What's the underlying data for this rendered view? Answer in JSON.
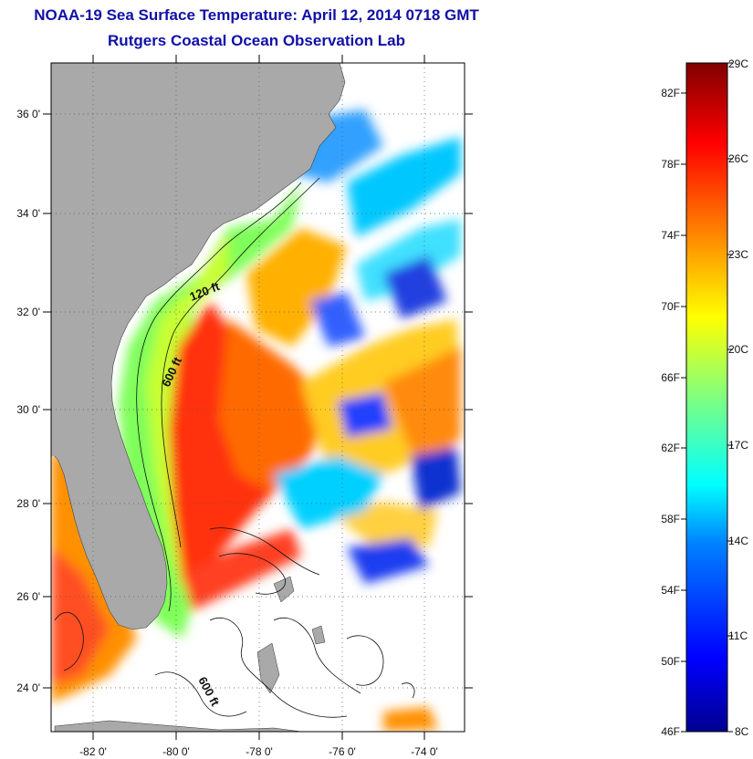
{
  "title": {
    "line1": "NOAA-19 Sea Surface Temperature:  April 12, 2014 0718 GMT",
    "line2": "Rutgers Coastal Ocean Observation Lab"
  },
  "map": {
    "lon_ticks": [
      "-82 0'",
      "-80 0'",
      "-78 0'",
      "-76 0'",
      "-74 0'"
    ],
    "lat_ticks": [
      "36 0'",
      "34 0'",
      "32 0'",
      "30 0'",
      "28 0'",
      "26 0'",
      "24 0'"
    ],
    "contour_labels": [
      "120 ft",
      "600 ft",
      "600 ft"
    ],
    "colors": {
      "land": "#a9a9a9",
      "cloud": "#ffffff",
      "frame": "#000000"
    }
  },
  "colorbar": {
    "fahrenheit": [
      "82F",
      "78F",
      "74F",
      "70F",
      "66F",
      "62F",
      "58F",
      "54F",
      "50F",
      "46F"
    ],
    "celsius": [
      "29C",
      "26C",
      "23C",
      "20C",
      "17C",
      "14C",
      "11C",
      "8C"
    ]
  }
}
